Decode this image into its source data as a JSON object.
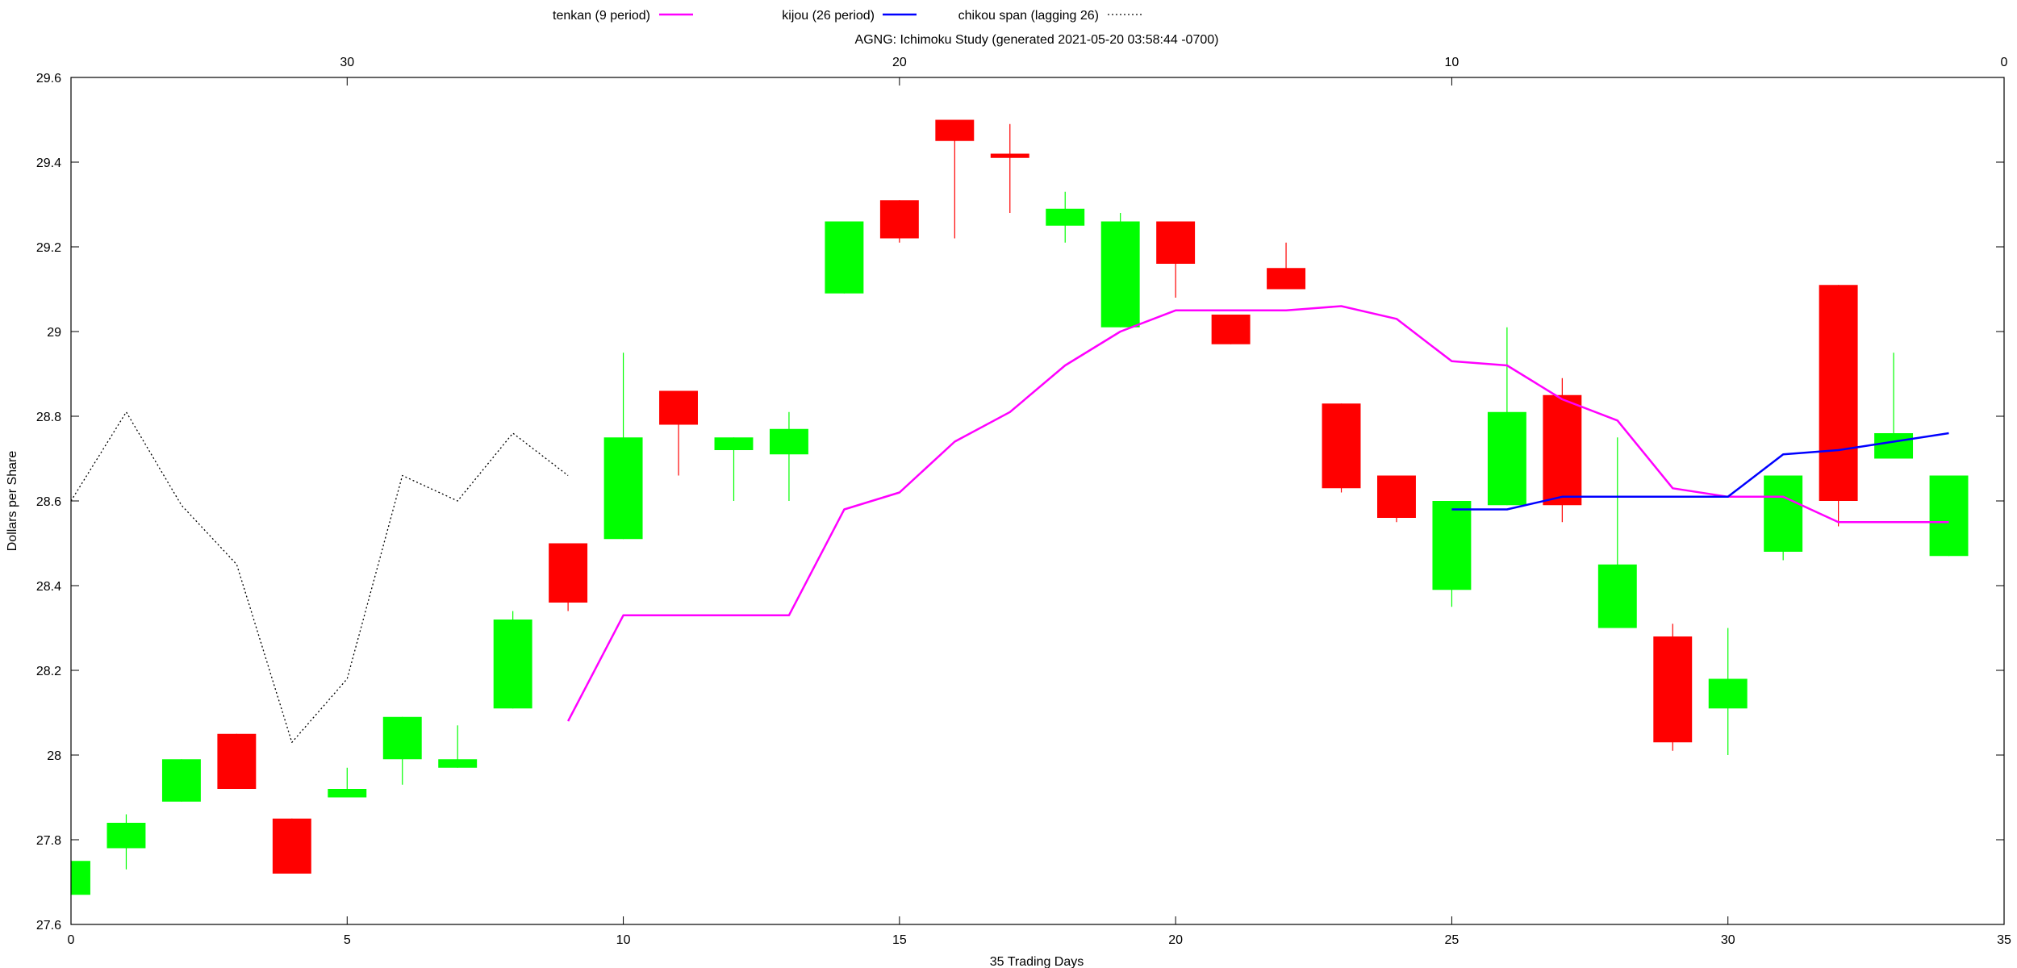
{
  "chart_data": {
    "type": "candlestick",
    "title": "AGNG: Ichimoku Study (generated  2021-05-20 03:58:44 -0700)",
    "xlabel": "35 Trading Days",
    "ylabel": "Dollars per Share",
    "xlim": [
      0,
      35
    ],
    "ylim": [
      27.6,
      29.6
    ],
    "x_ticks": [
      0,
      5,
      10,
      15,
      20,
      25,
      30,
      35
    ],
    "y_ticks": [
      27.6,
      27.8,
      28,
      28.2,
      28.4,
      28.6,
      28.8,
      29,
      29.2,
      29.4,
      29.6
    ],
    "y_tick_labels": [
      "27.6",
      "27.8",
      "28",
      "28.2",
      "28.4",
      "28.6",
      "28.8",
      "29",
      "29.2",
      "29.4",
      "29.6"
    ],
    "x2_ticks": [
      {
        "label": "30",
        "x": 5
      },
      {
        "label": "20",
        "x": 15
      },
      {
        "label": "10",
        "x": 25
      },
      {
        "label": "0",
        "x": 35
      }
    ],
    "grid": false,
    "legend_position": "top",
    "colors": {
      "up": "#00ff00",
      "down": "#ff0000",
      "tenkan": "#ff00ff",
      "kijou": "#0000ff",
      "chikou": "#000000"
    },
    "candles": [
      {
        "x": 0,
        "open": 27.67,
        "high": 27.75,
        "low": 27.67,
        "close": 27.75
      },
      {
        "x": 1,
        "open": 27.78,
        "high": 27.86,
        "low": 27.73,
        "close": 27.84
      },
      {
        "x": 2,
        "open": 27.89,
        "high": 27.99,
        "low": 27.89,
        "close": 27.99
      },
      {
        "x": 3,
        "open": 28.05,
        "high": 28.05,
        "low": 27.92,
        "close": 27.92
      },
      {
        "x": 4,
        "open": 27.85,
        "high": 27.85,
        "low": 27.72,
        "close": 27.72
      },
      {
        "x": 5,
        "open": 27.9,
        "high": 27.97,
        "low": 27.9,
        "close": 27.92
      },
      {
        "x": 6,
        "open": 27.99,
        "high": 28.09,
        "low": 27.93,
        "close": 28.09
      },
      {
        "x": 7,
        "open": 27.97,
        "high": 28.07,
        "low": 27.97,
        "close": 27.99
      },
      {
        "x": 8,
        "open": 28.11,
        "high": 28.34,
        "low": 28.11,
        "close": 28.32
      },
      {
        "x": 9,
        "open": 28.5,
        "high": 28.5,
        "low": 28.34,
        "close": 28.36
      },
      {
        "x": 10,
        "open": 28.51,
        "high": 28.95,
        "low": 28.51,
        "close": 28.75
      },
      {
        "x": 11,
        "open": 28.86,
        "high": 28.86,
        "low": 28.66,
        "close": 28.78
      },
      {
        "x": 12,
        "open": 28.72,
        "high": 28.75,
        "low": 28.6,
        "close": 28.75
      },
      {
        "x": 13,
        "open": 28.71,
        "high": 28.81,
        "low": 28.6,
        "close": 28.77
      },
      {
        "x": 14,
        "open": 29.09,
        "high": 29.26,
        "low": 29.09,
        "close": 29.26
      },
      {
        "x": 15,
        "open": 29.31,
        "high": 29.31,
        "low": 29.21,
        "close": 29.22
      },
      {
        "x": 16,
        "open": 29.5,
        "high": 29.5,
        "low": 29.22,
        "close": 29.45
      },
      {
        "x": 17,
        "open": 29.42,
        "high": 29.49,
        "low": 29.28,
        "close": 29.41
      },
      {
        "x": 18,
        "open": 29.25,
        "high": 29.33,
        "low": 29.21,
        "close": 29.29
      },
      {
        "x": 19,
        "open": 29.01,
        "high": 29.28,
        "low": 29.01,
        "close": 29.26
      },
      {
        "x": 20,
        "open": 29.26,
        "high": 29.26,
        "low": 29.08,
        "close": 29.16
      },
      {
        "x": 21,
        "open": 29.04,
        "high": 29.04,
        "low": 28.97,
        "close": 28.97
      },
      {
        "x": 22,
        "open": 29.15,
        "high": 29.21,
        "low": 29.1,
        "close": 29.1
      },
      {
        "x": 23,
        "open": 28.83,
        "high": 28.83,
        "low": 28.62,
        "close": 28.63
      },
      {
        "x": 24,
        "open": 28.66,
        "high": 28.66,
        "low": 28.55,
        "close": 28.56
      },
      {
        "x": 25,
        "open": 28.39,
        "high": 28.6,
        "low": 28.35,
        "close": 28.6
      },
      {
        "x": 26,
        "open": 28.59,
        "high": 29.01,
        "low": 28.59,
        "close": 28.81
      },
      {
        "x": 27,
        "open": 28.85,
        "high": 28.89,
        "low": 28.55,
        "close": 28.59
      },
      {
        "x": 28,
        "open": 28.3,
        "high": 28.75,
        "low": 28.3,
        "close": 28.45
      },
      {
        "x": 29,
        "open": 28.28,
        "high": 28.31,
        "low": 28.01,
        "close": 28.03
      },
      {
        "x": 30,
        "open": 28.11,
        "high": 28.3,
        "low": 28.0,
        "close": 28.18
      },
      {
        "x": 31,
        "open": 28.48,
        "high": 28.66,
        "low": 28.46,
        "close": 28.66
      },
      {
        "x": 32,
        "open": 29.11,
        "high": 29.11,
        "low": 28.54,
        "close": 28.6
      },
      {
        "x": 33,
        "open": 28.7,
        "high": 28.95,
        "low": 28.7,
        "close": 28.76
      },
      {
        "x": 34,
        "open": 28.47,
        "high": 28.66,
        "low": 28.47,
        "close": 28.66
      }
    ],
    "series": [
      {
        "name": "tenkan (9 period)",
        "style": "solid",
        "x": [
          9,
          10,
          11,
          12,
          13,
          14,
          15,
          16,
          17,
          18,
          19,
          20,
          21,
          22,
          23,
          24,
          25,
          26,
          27,
          28,
          29,
          30,
          31,
          32,
          33,
          34
        ],
        "values": [
          28.08,
          28.33,
          28.33,
          28.33,
          28.33,
          28.58,
          28.62,
          28.74,
          28.81,
          28.92,
          29.0,
          29.05,
          29.05,
          29.05,
          29.06,
          29.03,
          28.93,
          28.92,
          28.84,
          28.79,
          28.63,
          28.61,
          28.61,
          28.55,
          28.55,
          28.55
        ]
      },
      {
        "name": "kijou (26 period)",
        "style": "solid",
        "x": [
          25,
          26,
          27,
          28,
          29,
          30,
          31,
          32,
          33,
          34
        ],
        "values": [
          28.58,
          28.58,
          28.61,
          28.61,
          28.61,
          28.61,
          28.71,
          28.72,
          28.74,
          28.76
        ]
      },
      {
        "name": "chikou span (lagging 26)",
        "style": "dotted",
        "x": [
          0,
          1,
          2,
          3,
          4,
          5,
          6,
          7,
          8,
          9
        ],
        "values": [
          28.6,
          28.81,
          28.59,
          28.45,
          28.03,
          28.18,
          28.66,
          28.6,
          28.76,
          28.66
        ]
      }
    ]
  }
}
